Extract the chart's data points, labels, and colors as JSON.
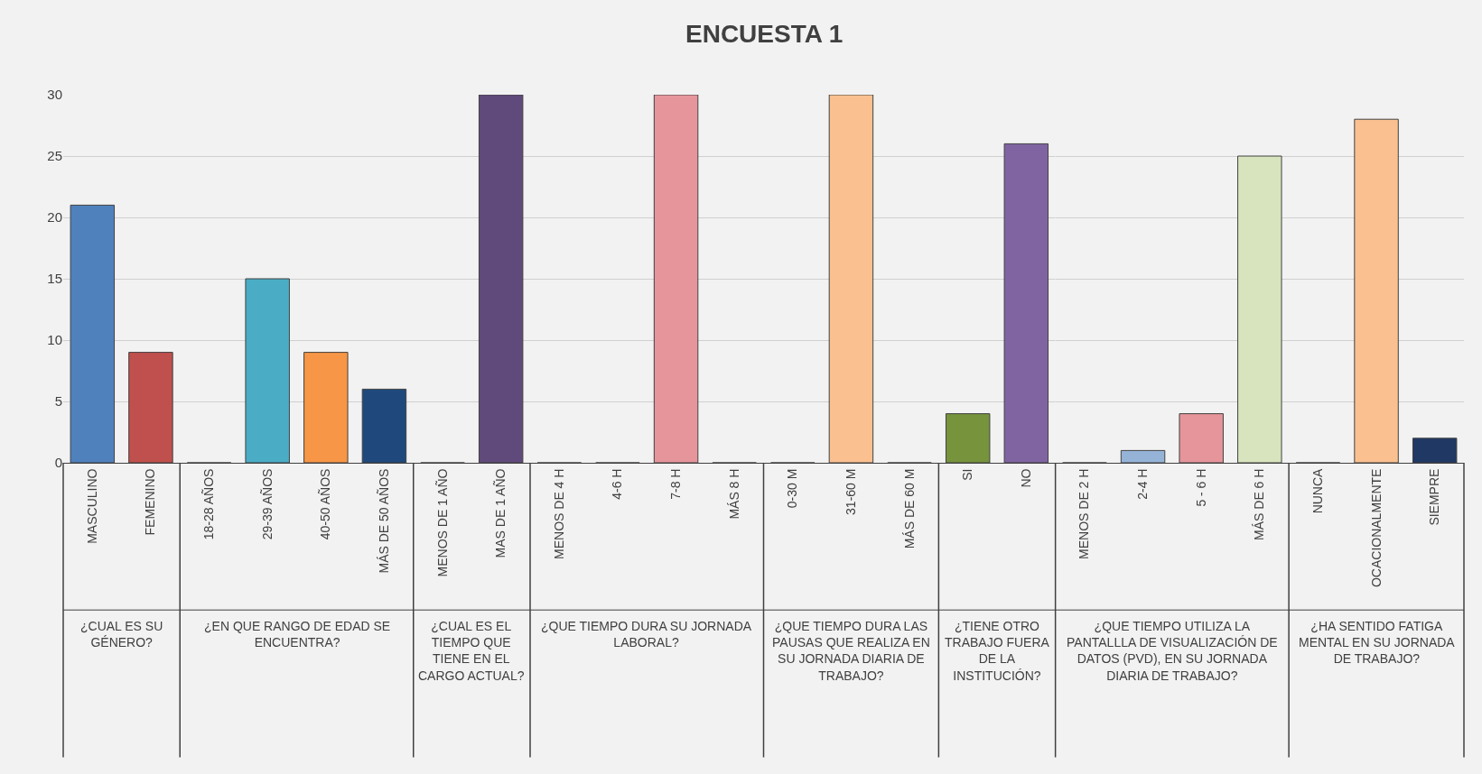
{
  "chart_data": [
    {
      "type": "bar",
      "xlabel": "¿CUAL ES SU GÉNERO?",
      "categories": [
        "MASCULINO",
        "FEMENINO"
      ],
      "values": [
        21,
        9
      ],
      "colors": [
        "#4f81bd",
        "#c0504d"
      ],
      "ylim": [
        0,
        30
      ],
      "yticks": [
        0,
        5,
        10,
        15,
        20,
        25,
        30
      ],
      "grid": "y"
    },
    {
      "type": "bar",
      "xlabel": "¿EN QUE RANGO DE EDAD SE ENCUENTRA?",
      "categories": [
        "18-28 AÑOS",
        "29-39 AÑOS",
        "40-50 AÑOS",
        "MÁS DE 50 AÑOS"
      ],
      "values": [
        0,
        15,
        9,
        6
      ],
      "colors": [
        "#8064a2",
        "#4bacc6",
        "#f79646",
        "#1f497d"
      ],
      "ylim": [
        0,
        30
      ],
      "yticks": [
        0,
        5,
        10,
        15,
        20,
        25,
        30
      ],
      "grid": "y",
      "tick_labels": "x"
    },
    {
      "type": "bar",
      "xlabel": "¿CUAL ES EL TIEMPO QUE TIENE EN EL CARGO ACTUAL?",
      "categories": [
        "MENOS DE 1 AÑO",
        "MAS DE 1 AÑO"
      ],
      "values": [
        0,
        30
      ],
      "colors": [
        "#4f6228",
        "#604a7b"
      ],
      "ylim": [
        0,
        30
      ],
      "yticks": [
        0,
        5,
        10,
        15,
        20,
        25,
        30
      ],
      "grid": "y",
      "tick_labels": "x"
    },
    {
      "type": "bar",
      "title": "ENCUESTA 1",
      "xlabel": "¿QUE TIEMPO DURA SU JORNADA LABORAL?",
      "categories": [
        "MENOS DE 4 H",
        "4-6 H",
        "7-8 H",
        "MÁS 8 H"
      ],
      "values": [
        0,
        0,
        30,
        0
      ],
      "colors": [
        "#e46c0a",
        "#4f81bd",
        "#e6959b",
        "#9bbb59"
      ],
      "ylim": [
        0,
        30
      ],
      "yticks": [
        0,
        5,
        10,
        15,
        20,
        25,
        30
      ],
      "grid": "y",
      "tick_labels": "x"
    },
    {
      "type": "bar",
      "xlabel": "¿QUE TIEMPO DURA LAS PAUSAS QUE REALIZA EN SU JORNADA DIARIA DE TRABAJO?",
      "categories": [
        "0-30 M",
        "31-60 M",
        "MÁS DE 60 M"
      ],
      "values": [
        0,
        30,
        0
      ],
      "colors": [
        "#4bacc6",
        "#fac08f",
        "#1f497d"
      ],
      "ylim": [
        0,
        30
      ],
      "yticks": [
        0,
        5,
        10,
        15,
        20,
        25,
        30
      ],
      "grid": "y",
      "tick_labels": "x"
    },
    {
      "type": "bar",
      "xlabel": "¿TIENE OTRO TRABAJO FUERA DE LA INSTITUCIÓN?",
      "categories": [
        "SI",
        "NO"
      ],
      "values": [
        4,
        26
      ],
      "colors": [
        "#77933c",
        "#8064a2"
      ],
      "ylim": [
        0,
        30
      ],
      "yticks": [
        0,
        5,
        10,
        15,
        20,
        25,
        30
      ],
      "grid": "y",
      "tick_labels": "x"
    },
    {
      "type": "bar",
      "xlabel": "¿QUE TIEMPO UTILIZA LA PANTALLLA DE VISUALIZACIÓN DE DATOS (PVD), EN SU JORNADA DIARIA DE TRABAJO?",
      "categories": [
        "MENOS DE 2 H",
        "2-4 H",
        "5 - 6 H",
        "MÁS DE 6 H"
      ],
      "values": [
        0,
        1,
        4,
        25
      ],
      "colors": [
        "#e46c0a",
        "#95b3d7",
        "#e6959b",
        "#d7e4bd"
      ],
      "ylim": [
        0,
        30
      ],
      "yticks": [
        0,
        5,
        10,
        15,
        20,
        25,
        30
      ],
      "grid": "y",
      "tick_labels": "x"
    },
    {
      "type": "bar",
      "xlabel": "¿HA SENTIDO FATIGA MENTAL EN SU JORNADA DE TRABAJO?",
      "categories": [
        "NUNCA",
        "OCACIONALMENTE",
        "SIEMPRE"
      ],
      "values": [
        0,
        28,
        2
      ],
      "colors": [
        "#4bacc6",
        "#fac08f",
        "#1f3864"
      ],
      "ylim": [
        0,
        30
      ],
      "yticks": [
        0,
        5,
        10,
        15,
        20,
        25,
        30
      ],
      "grid": "y",
      "tick_labels": "x"
    }
  ]
}
